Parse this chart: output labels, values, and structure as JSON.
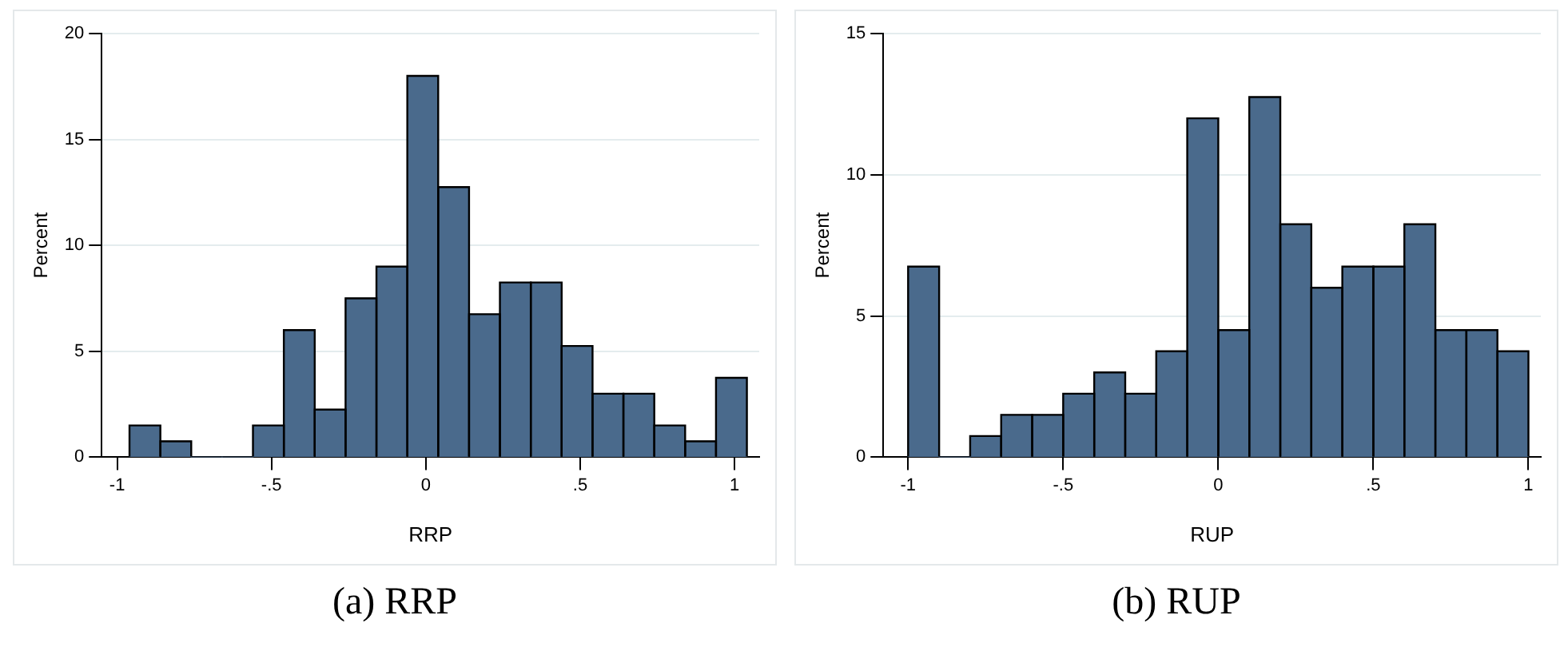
{
  "chart_data": [
    {
      "type": "histogram",
      "title": "(a) RRP",
      "xlabel": "RRP",
      "ylabel": "Percent",
      "color": "#4a6a8c",
      "bins": [
        -0.96,
        -0.86,
        -0.76,
        -0.66,
        -0.56,
        -0.46,
        -0.36,
        -0.26,
        -0.16,
        -0.06,
        0.04,
        0.14,
        0.24,
        0.34,
        0.44,
        0.54,
        0.64,
        0.74,
        0.84,
        0.94,
        1.04
      ],
      "values": [
        1.5,
        0.75,
        0,
        0,
        1.5,
        6,
        2.25,
        7.5,
        9,
        18,
        12.75,
        6.75,
        8.25,
        8.25,
        5.25,
        3,
        3,
        1.5,
        0.75,
        3.75
      ],
      "xlim": [
        -1.05,
        1.08
      ],
      "xticks": [
        {
          "value": -1,
          "label": "-1"
        },
        {
          "value": -0.5,
          "label": "-.5"
        },
        {
          "value": 0,
          "label": "0"
        },
        {
          "value": 0.5,
          "label": ".5"
        },
        {
          "value": 1,
          "label": "1"
        }
      ],
      "ylim": [
        0,
        20
      ],
      "yticks": [
        0,
        5,
        10,
        15,
        20
      ],
      "grid": "y"
    },
    {
      "type": "histogram",
      "title": "(b) RUP",
      "xlabel": "RUP",
      "ylabel": "Percent",
      "color": "#4a6a8c",
      "bins": [
        -1,
        -0.9,
        -0.8,
        -0.7,
        -0.6,
        -0.5,
        -0.4,
        -0.3,
        -0.2,
        -0.1,
        0,
        0.1,
        0.2,
        0.3,
        0.4,
        0.5,
        0.6,
        0.7,
        0.8,
        0.9,
        1
      ],
      "values": [
        6.75,
        0,
        0.75,
        1.5,
        1.5,
        2.25,
        3,
        2.25,
        3.75,
        12,
        4.5,
        12.75,
        8.25,
        6,
        6.75,
        6.75,
        8.25,
        4.5,
        4.5,
        3.75
      ],
      "xlim": [
        -1.08,
        1.04
      ],
      "xticks": [
        {
          "value": -1,
          "label": "-1"
        },
        {
          "value": -0.5,
          "label": "-.5"
        },
        {
          "value": 0,
          "label": "0"
        },
        {
          "value": 0.5,
          "label": ".5"
        },
        {
          "value": 1,
          "label": "1"
        }
      ],
      "ylim": [
        0,
        15
      ],
      "yticks": [
        0,
        5,
        10,
        15
      ],
      "grid": "y"
    }
  ]
}
